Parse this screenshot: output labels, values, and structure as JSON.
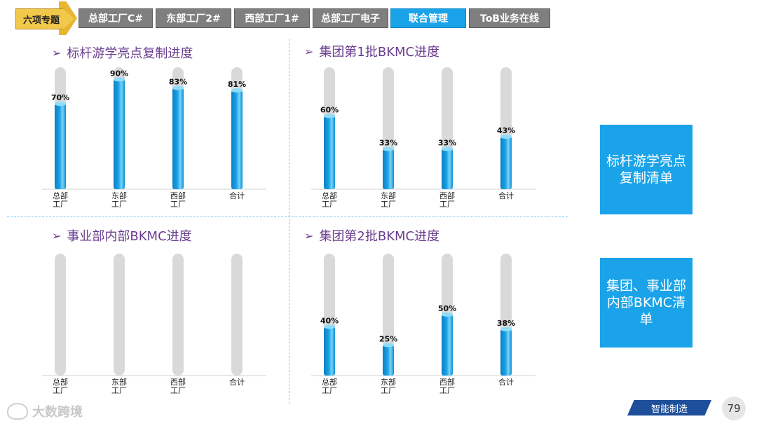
{
  "nav": {
    "badge": "六项专题",
    "tabs": [
      {
        "label": "总部工厂C#",
        "active": false
      },
      {
        "label": "东部工厂2#",
        "active": false
      },
      {
        "label": "西部工厂1#",
        "active": false
      },
      {
        "label": "总部工厂电子",
        "active": false
      },
      {
        "label": "联合管理",
        "active": true
      },
      {
        "label": "ToB业务在线",
        "active": false
      }
    ]
  },
  "side": {
    "box1": "标杆游学亮点复制清单",
    "box2": "集团、事业部内部BKMC清单"
  },
  "footer": {
    "tag": "智能制造",
    "page": "79",
    "watermark": "大数跨境"
  },
  "colors": {
    "bar": "#1aa3e8",
    "track": "#d9d9d9",
    "title": "#6a3d8f",
    "accent": "#1aa3e8"
  },
  "chart_data": [
    {
      "type": "bar",
      "title": "标杆游学亮点复制进度",
      "categories": [
        "总部\n工厂",
        "东部\n工厂",
        "西部\n工厂",
        "合计"
      ],
      "values": [
        70,
        90,
        83,
        81
      ],
      "labels": [
        "70%",
        "90%",
        "83%",
        "81%"
      ],
      "ylim": [
        0,
        100
      ]
    },
    {
      "type": "bar",
      "title": "集团第1批BKMC进度",
      "categories": [
        "总部\n工厂",
        "东部\n工厂",
        "西部\n工厂",
        "合计"
      ],
      "values": [
        60,
        33,
        33,
        43
      ],
      "labels": [
        "60%",
        "33%",
        "33%",
        "43%"
      ],
      "ylim": [
        0,
        100
      ]
    },
    {
      "type": "bar",
      "title": "事业部内部BKMC进度",
      "categories": [
        "总部\n工厂",
        "东部\n工厂",
        "西部\n工厂",
        "合计"
      ],
      "values": [
        0,
        0,
        0,
        0
      ],
      "labels": [
        "",
        "",
        "",
        ""
      ],
      "ylim": [
        0,
        100
      ]
    },
    {
      "type": "bar",
      "title": "集团第2批BKMC进度",
      "categories": [
        "总部\n工厂",
        "东部\n工厂",
        "西部\n工厂",
        "合计"
      ],
      "values": [
        40,
        25,
        50,
        38
      ],
      "labels": [
        "40%",
        "25%",
        "50%",
        "38%"
      ],
      "ylim": [
        0,
        100
      ]
    }
  ]
}
